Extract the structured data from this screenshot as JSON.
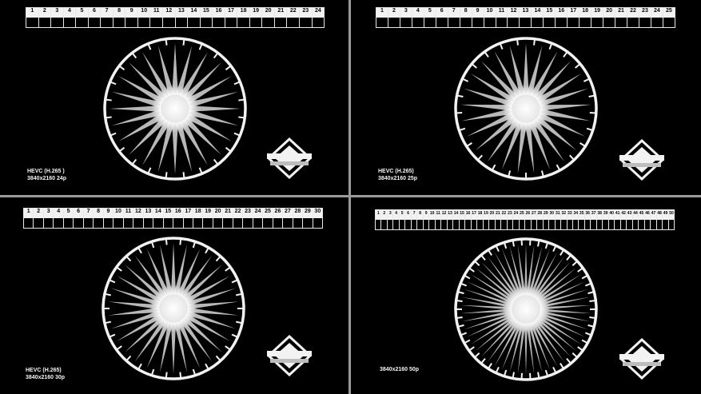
{
  "quadrants": [
    {
      "id": "top-left",
      "cells": [
        "1",
        "2",
        "3",
        "4",
        "5",
        "6",
        "7",
        "8",
        "9",
        "10",
        "11",
        "12",
        "13",
        "14",
        "15",
        "16",
        "17",
        "18",
        "19",
        "20",
        "21",
        "22",
        "23",
        "24"
      ],
      "caption_line1": "HEVC (H.265 )",
      "caption_line2": "3840x2160 24p",
      "spokes": 24
    },
    {
      "id": "top-right",
      "cells": [
        "1",
        "2",
        "3",
        "4",
        "5",
        "6",
        "7",
        "8",
        "9",
        "10",
        "11",
        "12",
        "13",
        "14",
        "15",
        "16",
        "17",
        "18",
        "19",
        "20",
        "21",
        "22",
        "23",
        "24",
        "25"
      ],
      "caption_line1": "HEVC (H.265)",
      "caption_line2": "3840x2160 25p",
      "spokes": 25
    },
    {
      "id": "bottom-left",
      "cells": [
        "1",
        "2",
        "3",
        "4",
        "5",
        "6",
        "7",
        "8",
        "9",
        "10",
        "11",
        "12",
        "13",
        "14",
        "15",
        "16",
        "17",
        "18",
        "19",
        "20",
        "21",
        "22",
        "23",
        "24",
        "25",
        "26",
        "27",
        "28",
        "29",
        "30"
      ],
      "caption_line1": "HEVC (H.265)",
      "caption_line2": "3840x2160 30p",
      "spokes": 30
    },
    {
      "id": "bottom-right",
      "cells": [
        "1",
        "2",
        "3",
        "4",
        "5",
        "6",
        "7",
        "8",
        "9",
        "10",
        "11",
        "12",
        "13",
        "14",
        "15",
        "16",
        "17",
        "18",
        "19",
        "20",
        "21",
        "22",
        "23",
        "24",
        "25",
        "26",
        "27",
        "28",
        "29",
        "30",
        "31",
        "32",
        "33",
        "34",
        "35",
        "36",
        "37",
        "38",
        "39",
        "40",
        "41",
        "42",
        "43",
        "44",
        "45",
        "46",
        "47",
        "48",
        "49",
        "50"
      ],
      "caption_line1": "",
      "caption_line2": "3840x2160 50p",
      "spokes": 50
    }
  ],
  "colors": {
    "background": "#000000",
    "foreground": "#f2f2f2",
    "divider": "#9a9a9a"
  },
  "icons": {
    "logo": "stacked-diamond-logo-icon",
    "wheel": "radial-spoke-wheel-icon"
  }
}
